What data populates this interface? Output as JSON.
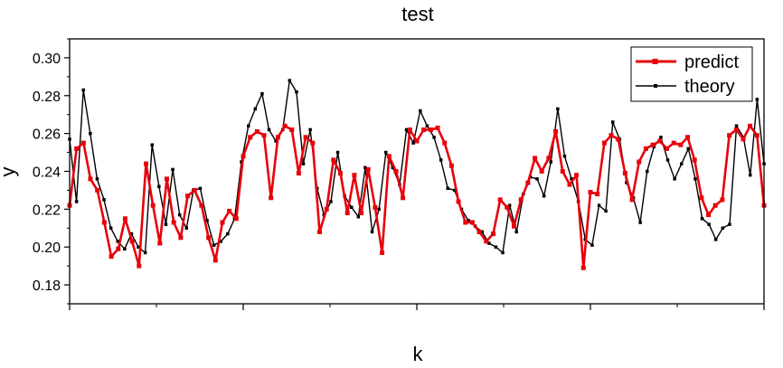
{
  "chart_data": {
    "type": "line",
    "title": "test",
    "xlabel": "k",
    "ylabel": "y",
    "ylim": [
      0.17,
      0.31
    ],
    "yticks": [
      0.18,
      0.2,
      0.22,
      0.24,
      0.26,
      0.28,
      0.3
    ],
    "ytick_labels": [
      "0.18",
      "0.20",
      "0.22",
      "0.24",
      "0.26",
      "0.28",
      "0.30"
    ],
    "xlim": [
      0,
      120
    ],
    "xticks": [
      0,
      30,
      60,
      90,
      120
    ],
    "legend_position": "top-right",
    "grid": false,
    "series": [
      {
        "name": "predict",
        "color": "#e8000b",
        "marker": "square",
        "values": [
          0.222,
          0.252,
          0.255,
          0.236,
          0.23,
          0.213,
          0.195,
          0.199,
          0.215,
          0.203,
          0.19,
          0.244,
          0.222,
          0.202,
          0.236,
          0.213,
          0.205,
          0.227,
          0.23,
          0.222,
          0.205,
          0.193,
          0.213,
          0.219,
          0.215,
          0.248,
          0.258,
          0.261,
          0.259,
          0.226,
          0.258,
          0.264,
          0.262,
          0.239,
          0.258,
          0.255,
          0.208,
          0.22,
          0.246,
          0.239,
          0.218,
          0.238,
          0.218,
          0.241,
          0.221,
          0.197,
          0.248,
          0.24,
          0.226,
          0.262,
          0.256,
          0.262,
          0.262,
          0.263,
          0.255,
          0.243,
          0.224,
          0.213,
          0.213,
          0.208,
          0.203,
          0.207,
          0.225,
          0.221,
          0.211,
          0.225,
          0.234,
          0.247,
          0.24,
          0.247,
          0.261,
          0.24,
          0.233,
          0.238,
          0.189,
          0.229,
          0.228,
          0.255,
          0.259,
          0.257,
          0.239,
          0.225,
          0.245,
          0.252,
          0.254,
          0.256,
          0.252,
          0.255,
          0.254,
          0.258,
          0.246,
          0.226,
          0.217,
          0.222,
          0.225,
          0.259,
          0.262,
          0.257,
          0.264,
          0.259,
          0.222
        ]
      },
      {
        "name": "theory",
        "color": "#000000",
        "marker": "square",
        "values": [
          0.257,
          0.224,
          0.283,
          0.26,
          0.236,
          0.225,
          0.21,
          0.203,
          0.199,
          0.207,
          0.2,
          0.197,
          0.254,
          0.232,
          0.212,
          0.241,
          0.217,
          0.21,
          0.23,
          0.231,
          0.214,
          0.201,
          0.203,
          0.207,
          0.215,
          0.245,
          0.264,
          0.273,
          0.281,
          0.262,
          0.256,
          0.262,
          0.288,
          0.282,
          0.244,
          0.262,
          0.231,
          0.217,
          0.224,
          0.25,
          0.227,
          0.221,
          0.216,
          0.242,
          0.208,
          0.22,
          0.25,
          0.242,
          0.233,
          0.262,
          0.255,
          0.272,
          0.264,
          0.258,
          0.246,
          0.231,
          0.23,
          0.22,
          0.214,
          0.211,
          0.208,
          0.202,
          0.2,
          0.197,
          0.222,
          0.208,
          0.228,
          0.237,
          0.236,
          0.227,
          0.245,
          0.273,
          0.248,
          0.236,
          0.224,
          0.204,
          0.201,
          0.222,
          0.219,
          0.266,
          0.257,
          0.234,
          0.226,
          0.213,
          0.24,
          0.253,
          0.258,
          0.246,
          0.236,
          0.244,
          0.252,
          0.236,
          0.215,
          0.212,
          0.204,
          0.21,
          0.212,
          0.264,
          0.258,
          0.238,
          0.278,
          0.244
        ]
      }
    ]
  }
}
